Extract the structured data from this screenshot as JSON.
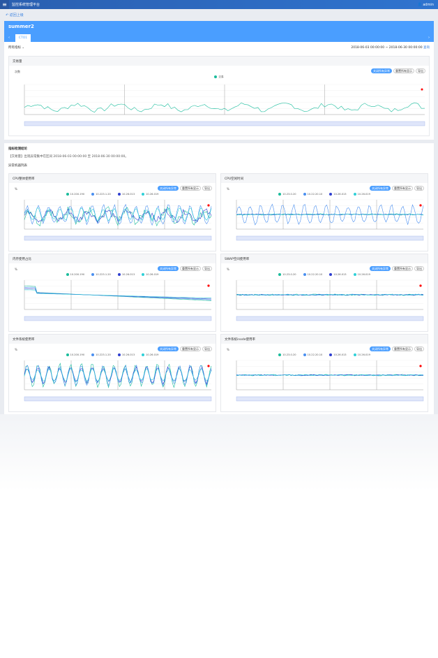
{
  "app": {
    "title": "监控系统管理平台",
    "user": "admin"
  },
  "breadcrumb": "返回上级",
  "header": {
    "title": "summer2",
    "tab": "CTO1"
  },
  "filter": {
    "selector": "所有指标",
    "range": "2018-06-03 00:00:00 ~ 2018-06-30 00:00:00",
    "search": "查询"
  },
  "buttons": {
    "close_abnormal": "关闭所有异常",
    "reset": "重置所有显示",
    "export": "导出"
  },
  "main_chart": {
    "title": "交易量",
    "unit": "次数",
    "legend": [
      "交易"
    ]
  },
  "analysis": {
    "title": "指标检测结论",
    "text": "【交易量】出现异常集中在区间 2018-06-03 00:00:00 至 2018-06-30 00:00:00。",
    "subtitle": "异常机器列表"
  },
  "charts": [
    {
      "title": "CPU整体使用率",
      "unit": "%",
      "legend": [
        "10.200.190",
        "10.223.1.20",
        "10.26.013",
        "10.26.019"
      ]
    },
    {
      "title": "CPU空闲时间",
      "unit": "%",
      "legend": [
        "10.23.0.20",
        "10.22.20.10",
        "10.26.013",
        "10.26.019"
      ]
    },
    {
      "title": "内存使用占比",
      "unit": "%",
      "legend": [
        "10.200.190",
        "10.223.1.20",
        "10.26.013",
        "10.26.019"
      ]
    },
    {
      "title": "SWAP空间使用率",
      "unit": "%",
      "legend": [
        "10.23.0.20",
        "10.22.20.10",
        "10.26.013",
        "10.26.019"
      ]
    },
    {
      "title": "文件系统使用率",
      "unit": "%",
      "legend": [
        "10.200.190",
        "10.223.1.20",
        "10.26.013",
        "10.26.019"
      ]
    },
    {
      "title": "文件系统inode使用率",
      "unit": "%",
      "legend": [
        "10.23.0.20",
        "10.22.20.10",
        "10.26.013",
        "10.26.019"
      ]
    }
  ],
  "colors": {
    "header": "#4a9eff",
    "topbar": "#2a5fb0",
    "series": [
      "#1abc9c",
      "#4a8ff0",
      "#2f3fd0",
      "#30d0d8"
    ],
    "anomaly": "#ff0000"
  }
}
